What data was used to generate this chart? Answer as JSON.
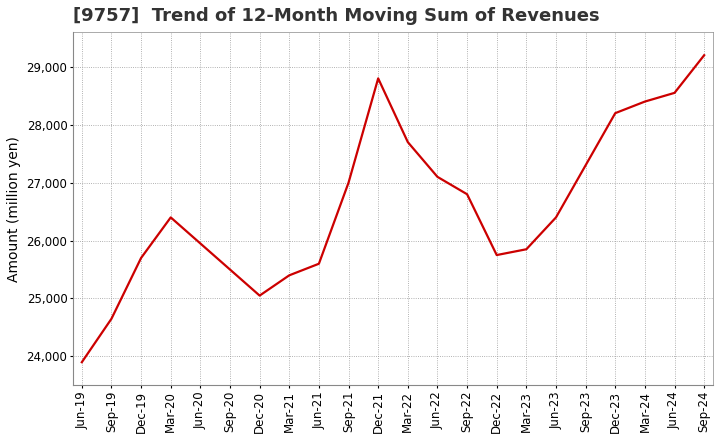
{
  "title": "[9757]  Trend of 12-Month Moving Sum of Revenues",
  "ylabel": "Amount (million yen)",
  "line_color": "#cc0000",
  "background_color": "#ffffff",
  "plot_bg_color": "#ffffff",
  "grid_color": "#999999",
  "x_labels": [
    "Jun-19",
    "Sep-19",
    "Dec-19",
    "Mar-20",
    "Jun-20",
    "Sep-20",
    "Dec-20",
    "Mar-21",
    "Jun-21",
    "Sep-21",
    "Dec-21",
    "Mar-22",
    "Jun-22",
    "Sep-22",
    "Dec-22",
    "Mar-23",
    "Jun-23",
    "Sep-23",
    "Dec-23",
    "Mar-24",
    "Jun-24",
    "Sep-24"
  ],
  "values": [
    23900,
    24650,
    25700,
    26400,
    25950,
    25500,
    25050,
    25400,
    25600,
    27000,
    28800,
    27700,
    27100,
    26800,
    25750,
    25850,
    26400,
    27300,
    28200,
    28400,
    28550,
    29200
  ],
  "ylim": [
    23500,
    29600
  ],
  "yticks": [
    24000,
    25000,
    26000,
    27000,
    28000,
    29000
  ],
  "title_fontsize": 13,
  "label_fontsize": 10,
  "tick_fontsize": 8.5
}
